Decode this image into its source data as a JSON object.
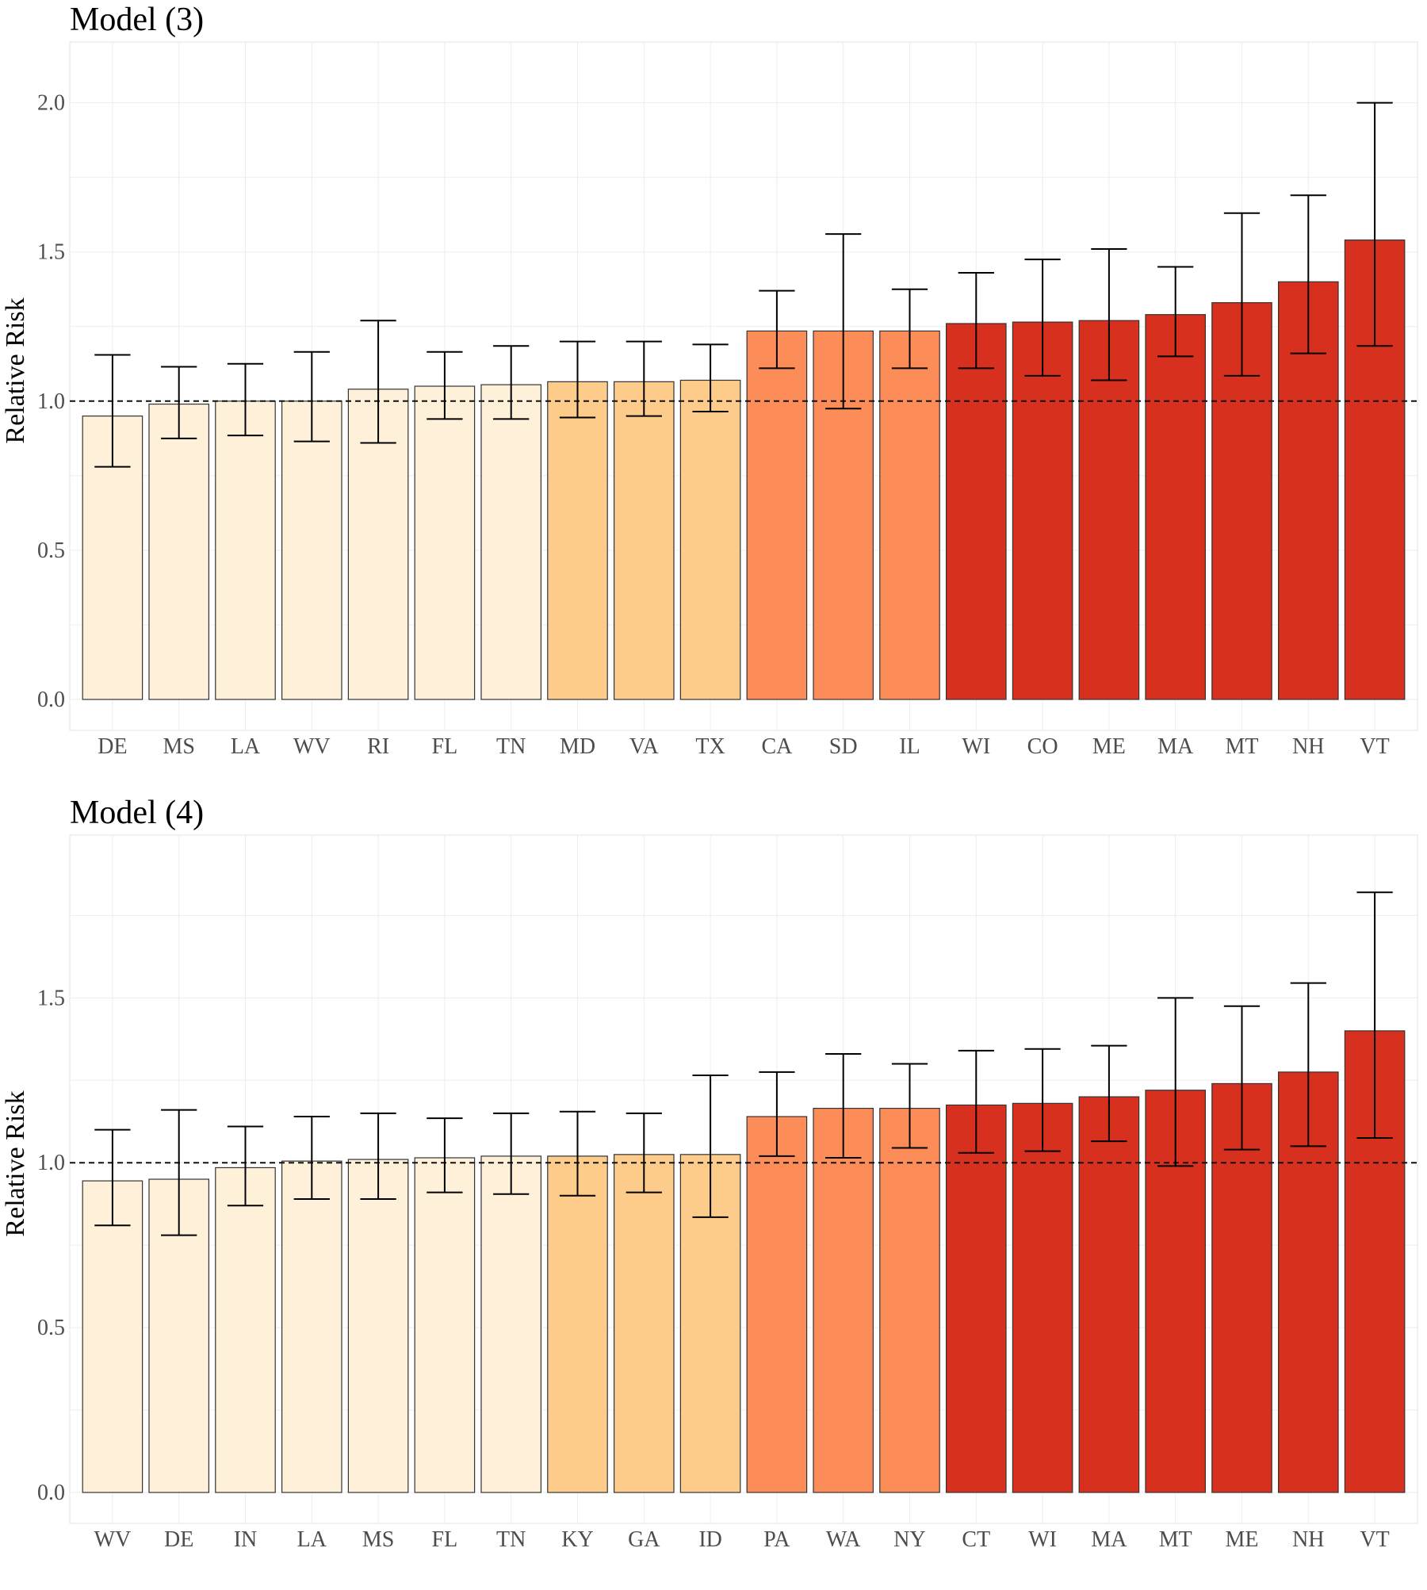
{
  "chart_data": [
    {
      "type": "bar",
      "title": "Model (3)",
      "ylabel": "Relative Risk",
      "xlabel": "",
      "ylim": [
        0,
        2.1
      ],
      "yticks": [
        0.0,
        0.5,
        1.0,
        1.5,
        2.0
      ],
      "ytick_labels": [
        "0.0",
        "0.5",
        "1.0",
        "1.5",
        "2.0"
      ],
      "reference_line": 1.0,
      "grid": true,
      "categories": [
        "DE",
        "MS",
        "LA",
        "WV",
        "RI",
        "FL",
        "TN",
        "MD",
        "VA",
        "TX",
        "CA",
        "SD",
        "IL",
        "WI",
        "CO",
        "ME",
        "MA",
        "MT",
        "NH",
        "VT"
      ],
      "values": [
        0.95,
        0.99,
        1.0,
        1.0,
        1.04,
        1.05,
        1.055,
        1.065,
        1.065,
        1.07,
        1.235,
        1.235,
        1.235,
        1.26,
        1.265,
        1.27,
        1.29,
        1.33,
        1.4,
        1.54
      ],
      "lower": [
        0.78,
        0.875,
        0.885,
        0.865,
        0.86,
        0.94,
        0.94,
        0.945,
        0.95,
        0.965,
        1.11,
        0.975,
        1.11,
        1.11,
        1.085,
        1.07,
        1.15,
        1.085,
        1.16,
        1.185
      ],
      "upper": [
        1.155,
        1.115,
        1.125,
        1.165,
        1.27,
        1.165,
        1.185,
        1.2,
        1.2,
        1.19,
        1.37,
        1.56,
        1.375,
        1.43,
        1.475,
        1.51,
        1.45,
        1.63,
        1.69,
        2.0
      ],
      "colors": [
        "#fef0d9",
        "#fef0d9",
        "#fef0d9",
        "#fef0d9",
        "#fef0d9",
        "#fef0d9",
        "#fef0d9",
        "#fdcc8a",
        "#fdcc8a",
        "#fdcc8a",
        "#fc8d59",
        "#fc8d59",
        "#fc8d59",
        "#d7301f",
        "#d7301f",
        "#d7301f",
        "#d7301f",
        "#d7301f",
        "#d7301f",
        "#d7301f"
      ]
    },
    {
      "type": "bar",
      "title": "Model (4)",
      "ylabel": "Relative Risk",
      "xlabel": "",
      "ylim": [
        0,
        1.9
      ],
      "yticks": [
        0.0,
        0.5,
        1.0,
        1.5
      ],
      "ytick_labels": [
        "0.0",
        "0.5",
        "1.0",
        "1.5"
      ],
      "reference_line": 1.0,
      "grid": true,
      "categories": [
        "WV",
        "DE",
        "IN",
        "LA",
        "MS",
        "FL",
        "TN",
        "KY",
        "GA",
        "ID",
        "PA",
        "WA",
        "NY",
        "CT",
        "WI",
        "MA",
        "MT",
        "ME",
        "NH",
        "VT"
      ],
      "values": [
        0.945,
        0.95,
        0.985,
        1.005,
        1.01,
        1.015,
        1.02,
        1.02,
        1.025,
        1.025,
        1.14,
        1.165,
        1.165,
        1.175,
        1.18,
        1.2,
        1.22,
        1.24,
        1.275,
        1.4
      ],
      "lower": [
        0.81,
        0.78,
        0.87,
        0.89,
        0.89,
        0.91,
        0.905,
        0.9,
        0.91,
        0.835,
        1.02,
        1.015,
        1.045,
        1.03,
        1.035,
        1.065,
        0.99,
        1.04,
        1.05,
        1.075
      ],
      "upper": [
        1.1,
        1.16,
        1.11,
        1.14,
        1.15,
        1.135,
        1.15,
        1.155,
        1.15,
        1.265,
        1.275,
        1.33,
        1.3,
        1.34,
        1.345,
        1.355,
        1.5,
        1.475,
        1.545,
        1.82
      ],
      "colors": [
        "#fef0d9",
        "#fef0d9",
        "#fef0d9",
        "#fef0d9",
        "#fef0d9",
        "#fef0d9",
        "#fef0d9",
        "#fdcc8a",
        "#fdcc8a",
        "#fdcc8a",
        "#fc8d59",
        "#fc8d59",
        "#fc8d59",
        "#d7301f",
        "#d7301f",
        "#d7301f",
        "#d7301f",
        "#d7301f",
        "#d7301f",
        "#d7301f"
      ]
    }
  ]
}
